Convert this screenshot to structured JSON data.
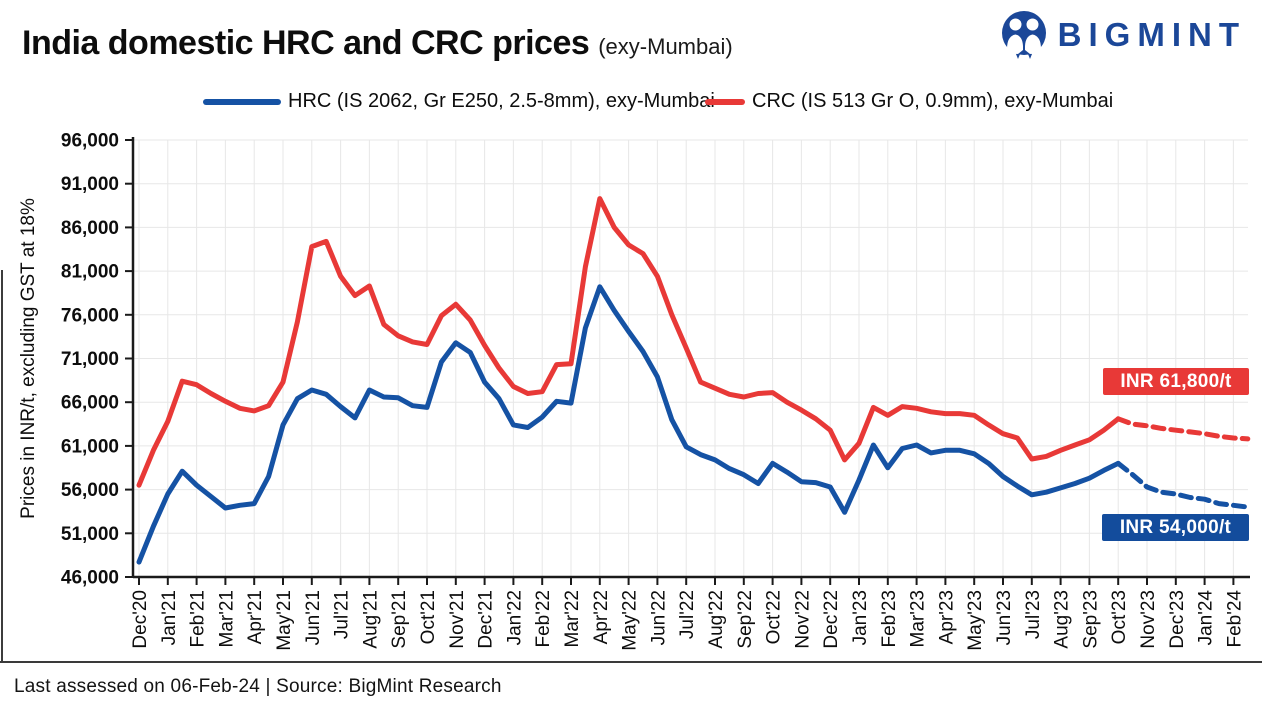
{
  "header": {
    "title": "India domestic HRC and CRC prices",
    "title_suffix": "(exy-Mumbai)",
    "logo_text": "BIGMINT",
    "logo_color": "#1B4798"
  },
  "legend": [
    {
      "label": "HRC (IS 2062, Gr E250, 2.5-8mm), exy-Mumbai",
      "color": "#1552A4"
    },
    {
      "label": "CRC (IS 513 Gr O, 0.9mm), exy-Mumbai",
      "color": "#E83937"
    }
  ],
  "chart_data": {
    "type": "line",
    "title": "India domestic HRC and CRC prices (exy-Mumbai)",
    "ylabel": "Prices in INR/t, excluding GST at 18%",
    "ylim": [
      46000,
      96000
    ],
    "ytick_step": 5000,
    "ytick_labels": [
      "96,000",
      "91,000",
      "86,000",
      "81,000",
      "76,000",
      "71,000",
      "66,000",
      "61,000",
      "56,000",
      "51,000",
      "46,000"
    ],
    "grid": true,
    "legend_position": "top",
    "points_per_month": 2,
    "categories": [
      "Dec'20",
      "Jan'21",
      "Feb'21",
      "Mar'21",
      "Apr'21",
      "May'21",
      "Jun'21",
      "Jul'21",
      "Aug'21",
      "Sep'21",
      "Oct'21",
      "Nov'21",
      "Dec'21",
      "Jan'22",
      "Feb'22",
      "Mar'22",
      "Apr'22",
      "May'22",
      "Jun'22",
      "Jul'22",
      "Aug'22",
      "Sep'22",
      "Oct'22",
      "Nov'22",
      "Dec'22",
      "Jan'23",
      "Feb'23",
      "Mar'23",
      "Apr'23",
      "May'23",
      "Jun'23",
      "Jul'23",
      "Aug'23",
      "Sep'23",
      "Oct'23",
      "Nov'23",
      "Dec'23",
      "Jan'24",
      "Feb'24"
    ],
    "series": [
      {
        "name": "HRC (IS 2062, Gr E250, 2.5-8mm), exy-Mumbai",
        "color": "#1552A4",
        "dash_from_index": 68,
        "values": [
          47700,
          51800,
          55500,
          58100,
          56500,
          55200,
          53900,
          54200,
          54400,
          57500,
          63400,
          66400,
          67400,
          66900,
          65500,
          64200,
          67400,
          66600,
          66500,
          65600,
          65400,
          70600,
          72800,
          71700,
          68300,
          66400,
          63400,
          63100,
          64300,
          66100,
          65900,
          74500,
          79200,
          76500,
          74100,
          71800,
          68900,
          64000,
          60900,
          60000,
          59400,
          58400,
          57700,
          56700,
          59000,
          58000,
          56900,
          56800,
          56300,
          53400,
          57100,
          61100,
          58500,
          60700,
          61100,
          60200,
          60500,
          60500,
          60100,
          59000,
          57500,
          56400,
          55400,
          55700,
          56200,
          56700,
          57300,
          58200,
          59000,
          57700,
          56300,
          55700,
          55500,
          55100,
          54900,
          54400,
          54200,
          54000
        ]
      },
      {
        "name": "CRC (IS 513 Gr O, 0.9mm), exy-Mumbai",
        "color": "#E83937",
        "dash_from_index": 68,
        "values": [
          56500,
          60500,
          63800,
          68400,
          68000,
          67000,
          66100,
          65300,
          65000,
          65600,
          68300,
          75200,
          83800,
          84400,
          80400,
          78200,
          79300,
          74900,
          73600,
          72900,
          72600,
          75900,
          77200,
          75400,
          72500,
          69900,
          67800,
          67000,
          67200,
          70300,
          70400,
          81500,
          89300,
          86000,
          84000,
          83000,
          80400,
          76000,
          72200,
          68300,
          67600,
          66900,
          66600,
          67000,
          67100,
          66000,
          65100,
          64100,
          62800,
          59400,
          61300,
          65400,
          64500,
          65500,
          65300,
          64900,
          64700,
          64700,
          64500,
          63400,
          62400,
          61900,
          59500,
          59800,
          60500,
          61100,
          61700,
          62800,
          64100,
          63500,
          63300,
          63000,
          62800,
          62600,
          62400,
          62100,
          61900,
          61800
        ]
      }
    ],
    "annotations": [
      {
        "text": "INR 61,800/t",
        "bg": "#E83937",
        "series": "CRC"
      },
      {
        "text": "INR 54,000/t",
        "bg": "#134C9C",
        "series": "HRC"
      }
    ]
  },
  "footer": {
    "text": "Last assessed on 06-Feb-24  | Source: BigMint Research"
  }
}
